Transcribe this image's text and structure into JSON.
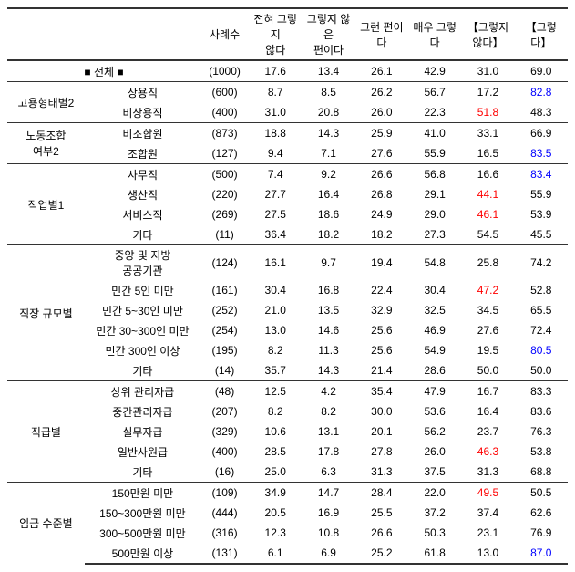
{
  "columns": [
    "사례수",
    "전혀 그렇지\n않다",
    "그렇지 않은\n편이다",
    "그런 편이다",
    "매우 그렇다",
    "【그렇지\n않다】",
    "【그렇다】"
  ],
  "total_label": "■ 전체 ■",
  "total_values": [
    "(1000)",
    "17.6",
    "13.4",
    "26.1",
    "42.9",
    "31.0",
    "69.0"
  ],
  "groups": [
    {
      "category": "고용형태별2",
      "rows": [
        {
          "label": "상용직",
          "values": [
            "(600)",
            "8.7",
            "8.5",
            "26.2",
            "56.7",
            "17.2",
            "82.8"
          ],
          "styles": [
            "",
            "",
            "",
            "",
            "",
            "",
            "blue"
          ]
        },
        {
          "label": "비상용직",
          "values": [
            "(400)",
            "31.0",
            "20.8",
            "26.0",
            "22.3",
            "51.8",
            "48.3"
          ],
          "styles": [
            "",
            "",
            "",
            "",
            "",
            "red",
            ""
          ]
        }
      ]
    },
    {
      "category": "노동조합\n여부2",
      "rows": [
        {
          "label": "비조합원",
          "values": [
            "(873)",
            "18.8",
            "14.3",
            "25.9",
            "41.0",
            "33.1",
            "66.9"
          ],
          "styles": [
            "",
            "",
            "",
            "",
            "",
            "",
            ""
          ]
        },
        {
          "label": "조합원",
          "values": [
            "(127)",
            "9.4",
            "7.1",
            "27.6",
            "55.9",
            "16.5",
            "83.5"
          ],
          "styles": [
            "",
            "",
            "",
            "",
            "",
            "",
            "blue"
          ]
        }
      ]
    },
    {
      "category": "직업별1",
      "rows": [
        {
          "label": "사무직",
          "values": [
            "(500)",
            "7.4",
            "9.2",
            "26.6",
            "56.8",
            "16.6",
            "83.4"
          ],
          "styles": [
            "",
            "",
            "",
            "",
            "",
            "",
            "blue"
          ]
        },
        {
          "label": "생산직",
          "values": [
            "(220)",
            "27.7",
            "16.4",
            "26.8",
            "29.1",
            "44.1",
            "55.9"
          ],
          "styles": [
            "",
            "",
            "",
            "",
            "",
            "red",
            ""
          ]
        },
        {
          "label": "서비스직",
          "values": [
            "(269)",
            "27.5",
            "18.6",
            "24.9",
            "29.0",
            "46.1",
            "53.9"
          ],
          "styles": [
            "",
            "",
            "",
            "",
            "",
            "red",
            ""
          ]
        },
        {
          "label": "기타",
          "values": [
            "(11)",
            "36.4",
            "18.2",
            "18.2",
            "27.3",
            "54.5",
            "45.5"
          ],
          "styles": [
            "",
            "",
            "",
            "",
            "",
            "",
            ""
          ]
        }
      ]
    },
    {
      "category": "직장 규모별",
      "rows": [
        {
          "label": "중앙 및 지방\n공공기관",
          "values": [
            "(124)",
            "16.1",
            "9.7",
            "19.4",
            "54.8",
            "25.8",
            "74.2"
          ],
          "styles": [
            "",
            "",
            "",
            "",
            "",
            "",
            ""
          ]
        },
        {
          "label": "민간 5인 미만",
          "values": [
            "(161)",
            "30.4",
            "16.8",
            "22.4",
            "30.4",
            "47.2",
            "52.8"
          ],
          "styles": [
            "",
            "",
            "",
            "",
            "",
            "red",
            ""
          ]
        },
        {
          "label": "민간 5~30인 미만",
          "values": [
            "(252)",
            "21.0",
            "13.5",
            "32.9",
            "32.5",
            "34.5",
            "65.5"
          ],
          "styles": [
            "",
            "",
            "",
            "",
            "",
            "",
            ""
          ]
        },
        {
          "label": "민간 30~300인 미만",
          "values": [
            "(254)",
            "13.0",
            "14.6",
            "25.6",
            "46.9",
            "27.6",
            "72.4"
          ],
          "styles": [
            "",
            "",
            "",
            "",
            "",
            "",
            ""
          ]
        },
        {
          "label": "민간 300인 이상",
          "values": [
            "(195)",
            "8.2",
            "11.3",
            "25.6",
            "54.9",
            "19.5",
            "80.5"
          ],
          "styles": [
            "",
            "",
            "",
            "",
            "",
            "",
            "blue"
          ]
        },
        {
          "label": "기타",
          "values": [
            "(14)",
            "35.7",
            "14.3",
            "21.4",
            "28.6",
            "50.0",
            "50.0"
          ],
          "styles": [
            "",
            "",
            "",
            "",
            "",
            "",
            ""
          ]
        }
      ]
    },
    {
      "category": "직급별",
      "rows": [
        {
          "label": "상위 관리자급",
          "values": [
            "(48)",
            "12.5",
            "4.2",
            "35.4",
            "47.9",
            "16.7",
            "83.3"
          ],
          "styles": [
            "",
            "",
            "",
            "",
            "",
            "",
            ""
          ]
        },
        {
          "label": "중간관리자급",
          "values": [
            "(207)",
            "8.2",
            "8.2",
            "30.0",
            "53.6",
            "16.4",
            "83.6"
          ],
          "styles": [
            "",
            "",
            "",
            "",
            "",
            "",
            ""
          ]
        },
        {
          "label": "실무자급",
          "values": [
            "(329)",
            "10.6",
            "13.1",
            "20.1",
            "56.2",
            "23.7",
            "76.3"
          ],
          "styles": [
            "",
            "",
            "",
            "",
            "",
            "",
            ""
          ]
        },
        {
          "label": "일반사원급",
          "values": [
            "(400)",
            "28.5",
            "17.8",
            "27.8",
            "26.0",
            "46.3",
            "53.8"
          ],
          "styles": [
            "",
            "",
            "",
            "",
            "",
            "red",
            ""
          ]
        },
        {
          "label": "기타",
          "values": [
            "(16)",
            "25.0",
            "6.3",
            "31.3",
            "37.5",
            "31.3",
            "68.8"
          ],
          "styles": [
            "",
            "",
            "",
            "",
            "",
            "",
            ""
          ]
        }
      ]
    },
    {
      "category": "임금 수준별",
      "rows": [
        {
          "label": "150만원 미만",
          "values": [
            "(109)",
            "34.9",
            "14.7",
            "28.4",
            "22.0",
            "49.5",
            "50.5"
          ],
          "styles": [
            "",
            "",
            "",
            "",
            "",
            "red",
            ""
          ]
        },
        {
          "label": "150~300만원 미만",
          "values": [
            "(444)",
            "20.5",
            "16.9",
            "25.5",
            "37.2",
            "37.4",
            "62.6"
          ],
          "styles": [
            "",
            "",
            "",
            "",
            "",
            "",
            ""
          ]
        },
        {
          "label": "300~500만원 미만",
          "values": [
            "(316)",
            "12.3",
            "10.8",
            "26.6",
            "50.3",
            "23.1",
            "76.9"
          ],
          "styles": [
            "",
            "",
            "",
            "",
            "",
            "",
            ""
          ]
        },
        {
          "label": "500만원 이상",
          "values": [
            "(131)",
            "6.1",
            "6.9",
            "25.2",
            "61.8",
            "13.0",
            "87.0"
          ],
          "styles": [
            "",
            "",
            "",
            "",
            "",
            "",
            "blue"
          ]
        }
      ]
    }
  ]
}
